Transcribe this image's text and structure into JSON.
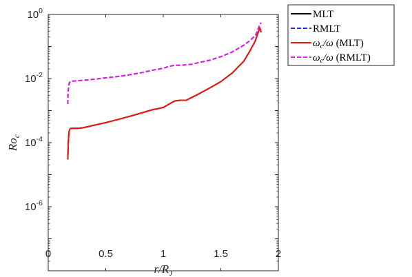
{
  "chart_data": {
    "type": "line",
    "xlabel": "r/R_J",
    "ylabel": "Ro_c",
    "xlim": [
      0,
      2
    ],
    "ylim": [
      1e-08,
      1
    ],
    "y_scale": "log",
    "grid": false,
    "legend_position": "outside-top-right",
    "x_ticks": [
      "0",
      "0.5",
      "1",
      "1.5",
      "2"
    ],
    "y_ticks": [
      {
        "base": "10",
        "exp": "0",
        "value": 1
      },
      {
        "base": "10",
        "exp": "-2",
        "value": 0.01
      },
      {
        "base": "10",
        "exp": "-4",
        "value": 0.0001
      },
      {
        "base": "10",
        "exp": "-6",
        "value": 1e-06
      }
    ],
    "series": [
      {
        "name": "MLT",
        "color": "#000000",
        "dash": "solid",
        "x": [
          0.17,
          0.175,
          0.18,
          0.19,
          0.2,
          0.25,
          0.3,
          0.4,
          0.5,
          0.6,
          0.7,
          0.8,
          0.9,
          1.0,
          1.05,
          1.1,
          1.15,
          1.2,
          1.25,
          1.3,
          1.4,
          1.5,
          1.6,
          1.7,
          1.75,
          1.8,
          1.82,
          1.84,
          1.85
        ],
        "values": [
          3e-05,
          0.00011,
          0.00022,
          0.00027,
          0.00028,
          0.00028,
          0.00029,
          0.00035,
          0.00042,
          0.00052,
          0.00065,
          0.00082,
          0.00105,
          0.00125,
          0.0016,
          0.002,
          0.0021,
          0.0021,
          0.0026,
          0.0032,
          0.005,
          0.008,
          0.015,
          0.035,
          0.07,
          0.15,
          0.25,
          0.38,
          0.28
        ]
      },
      {
        "name": "RMLT",
        "color": "#1f2fd6",
        "dash": "dashed",
        "x": [
          0.17,
          0.172,
          0.18,
          0.19,
          0.2,
          0.25,
          0.3,
          0.4,
          0.5,
          0.6,
          0.7,
          0.8,
          0.9,
          1.0,
          1.05,
          1.1,
          1.15,
          1.2,
          1.25,
          1.3,
          1.4,
          1.5,
          1.6,
          1.7,
          1.75,
          1.8,
          1.82,
          1.84,
          1.85
        ],
        "values": [
          0.0016,
          0.0035,
          0.0068,
          0.008,
          0.0083,
          0.0085,
          0.0088,
          0.0095,
          0.0105,
          0.0115,
          0.013,
          0.015,
          0.018,
          0.021,
          0.024,
          0.026,
          0.026,
          0.027,
          0.028,
          0.031,
          0.037,
          0.048,
          0.068,
          0.11,
          0.15,
          0.22,
          0.32,
          0.5,
          0.55
        ]
      },
      {
        "name": "ω_c/ω (MLT)",
        "color": "#e8190f",
        "dash": "solid",
        "x": [
          0.17,
          0.175,
          0.18,
          0.19,
          0.2,
          0.25,
          0.3,
          0.4,
          0.5,
          0.6,
          0.7,
          0.8,
          0.9,
          1.0,
          1.05,
          1.1,
          1.15,
          1.2,
          1.25,
          1.3,
          1.4,
          1.5,
          1.6,
          1.7,
          1.75,
          1.8,
          1.82,
          1.84,
          1.85
        ],
        "values": [
          3e-05,
          0.00011,
          0.00022,
          0.00027,
          0.00028,
          0.00028,
          0.00029,
          0.00035,
          0.00042,
          0.00052,
          0.00065,
          0.00082,
          0.00105,
          0.00125,
          0.0016,
          0.002,
          0.0021,
          0.0021,
          0.0026,
          0.0032,
          0.005,
          0.008,
          0.015,
          0.035,
          0.07,
          0.15,
          0.25,
          0.38,
          0.28
        ]
      },
      {
        "name": "ω_c/ω (RMLT)",
        "color": "#e619e6",
        "dash": "dashed",
        "x": [
          0.17,
          0.172,
          0.18,
          0.19,
          0.2,
          0.25,
          0.3,
          0.4,
          0.5,
          0.6,
          0.7,
          0.8,
          0.9,
          1.0,
          1.05,
          1.1,
          1.15,
          1.2,
          1.25,
          1.3,
          1.4,
          1.5,
          1.6,
          1.7,
          1.75,
          1.8,
          1.82,
          1.84,
          1.85
        ],
        "values": [
          0.0016,
          0.0035,
          0.0068,
          0.008,
          0.0083,
          0.0085,
          0.0088,
          0.0095,
          0.0105,
          0.0115,
          0.013,
          0.015,
          0.018,
          0.021,
          0.024,
          0.026,
          0.026,
          0.027,
          0.028,
          0.031,
          0.037,
          0.048,
          0.068,
          0.11,
          0.15,
          0.22,
          0.32,
          0.5,
          0.55
        ]
      }
    ],
    "legend": [
      {
        "main": "MLT",
        "sub": "",
        "rest": "",
        "suffix": ""
      },
      {
        "main": "RMLT",
        "sub": "",
        "rest": "",
        "suffix": ""
      },
      {
        "main": "ω",
        "sub": "c",
        "rest": "/ω",
        "suffix": " (MLT)"
      },
      {
        "main": "ω",
        "sub": "c",
        "rest": "/ω",
        "suffix": " (RMLT)"
      }
    ],
    "axis_text": {
      "xlabel_main": "r/R",
      "xlabel_sub": "J",
      "ylabel_main": "Ro",
      "ylabel_sub": "c"
    }
  }
}
